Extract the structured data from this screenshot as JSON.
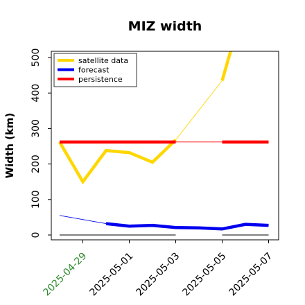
{
  "chart_data": {
    "type": "line",
    "title": "MIZ width",
    "xlabel": "",
    "ylabel": "Width (km)",
    "ylim": [
      0,
      530
    ],
    "xlim": [
      "2025-04-28",
      "2025-05-08"
    ],
    "yticks": [
      0,
      100,
      200,
      300,
      400,
      500
    ],
    "xticks": [
      {
        "x": "2025-04-29",
        "label": "2025-04-29",
        "color": "#2e8b2e"
      },
      {
        "x": "2025-05-01",
        "label": "2025-05-01",
        "color": "#000000"
      },
      {
        "x": "2025-05-03",
        "label": "2025-05-03",
        "color": "#000000"
      },
      {
        "x": "2025-05-05",
        "label": "2025-05-05",
        "color": "#000000"
      },
      {
        "x": "2025-05-07",
        "label": "2025-05-07",
        "color": "#000000"
      }
    ],
    "grid": false,
    "legend_position": "top-left",
    "series": [
      {
        "name": "satellite data",
        "color": "#ffd700",
        "thick_segments": [
          [
            [
              "2025-04-28",
              262
            ],
            [
              "2025-04-29",
              150
            ],
            [
              "2025-04-30",
              238
            ],
            [
              "2025-05-01",
              232
            ],
            [
              "2025-05-02",
              205
            ],
            [
              "2025-05-03",
              268
            ]
          ],
          [
            [
              "2025-05-05",
              435
            ],
            [
              "2025-05-05 10:00",
              530
            ]
          ]
        ],
        "thin_segments": [
          [
            [
              "2025-05-03",
              268
            ],
            [
              "2025-05-05",
              435
            ]
          ]
        ]
      },
      {
        "name": "forecast",
        "color": "#0000ee",
        "thick_segments": [
          [
            [
              "2025-04-30",
              32
            ],
            [
              "2025-05-01",
              25
            ],
            [
              "2025-05-02",
              27
            ],
            [
              "2025-05-03",
              21
            ],
            [
              "2025-05-04",
              20
            ],
            [
              "2025-05-05",
              17
            ],
            [
              "2025-05-06",
              30
            ],
            [
              "2025-05-07",
              27
            ]
          ]
        ],
        "thin_segments": [
          [
            [
              "2025-04-28",
              55
            ],
            [
              "2025-04-30",
              32
            ]
          ]
        ]
      },
      {
        "name": "persistence",
        "color": "#ff0000",
        "thick_segments": [
          [
            [
              "2025-04-28",
              262
            ],
            [
              "2025-05-03",
              262
            ]
          ],
          [
            [
              "2025-05-05",
              262
            ],
            [
              "2025-05-07",
              262
            ]
          ]
        ],
        "thin_segments": [
          [
            [
              "2025-05-03",
              262
            ],
            [
              "2025-05-05",
              262
            ]
          ]
        ]
      }
    ],
    "baseline_segments": {
      "color": "#808080",
      "y": 0,
      "segments": [
        [
          "2025-04-28",
          "2025-05-03"
        ],
        [
          "2025-05-05",
          "2025-05-07"
        ]
      ]
    }
  }
}
